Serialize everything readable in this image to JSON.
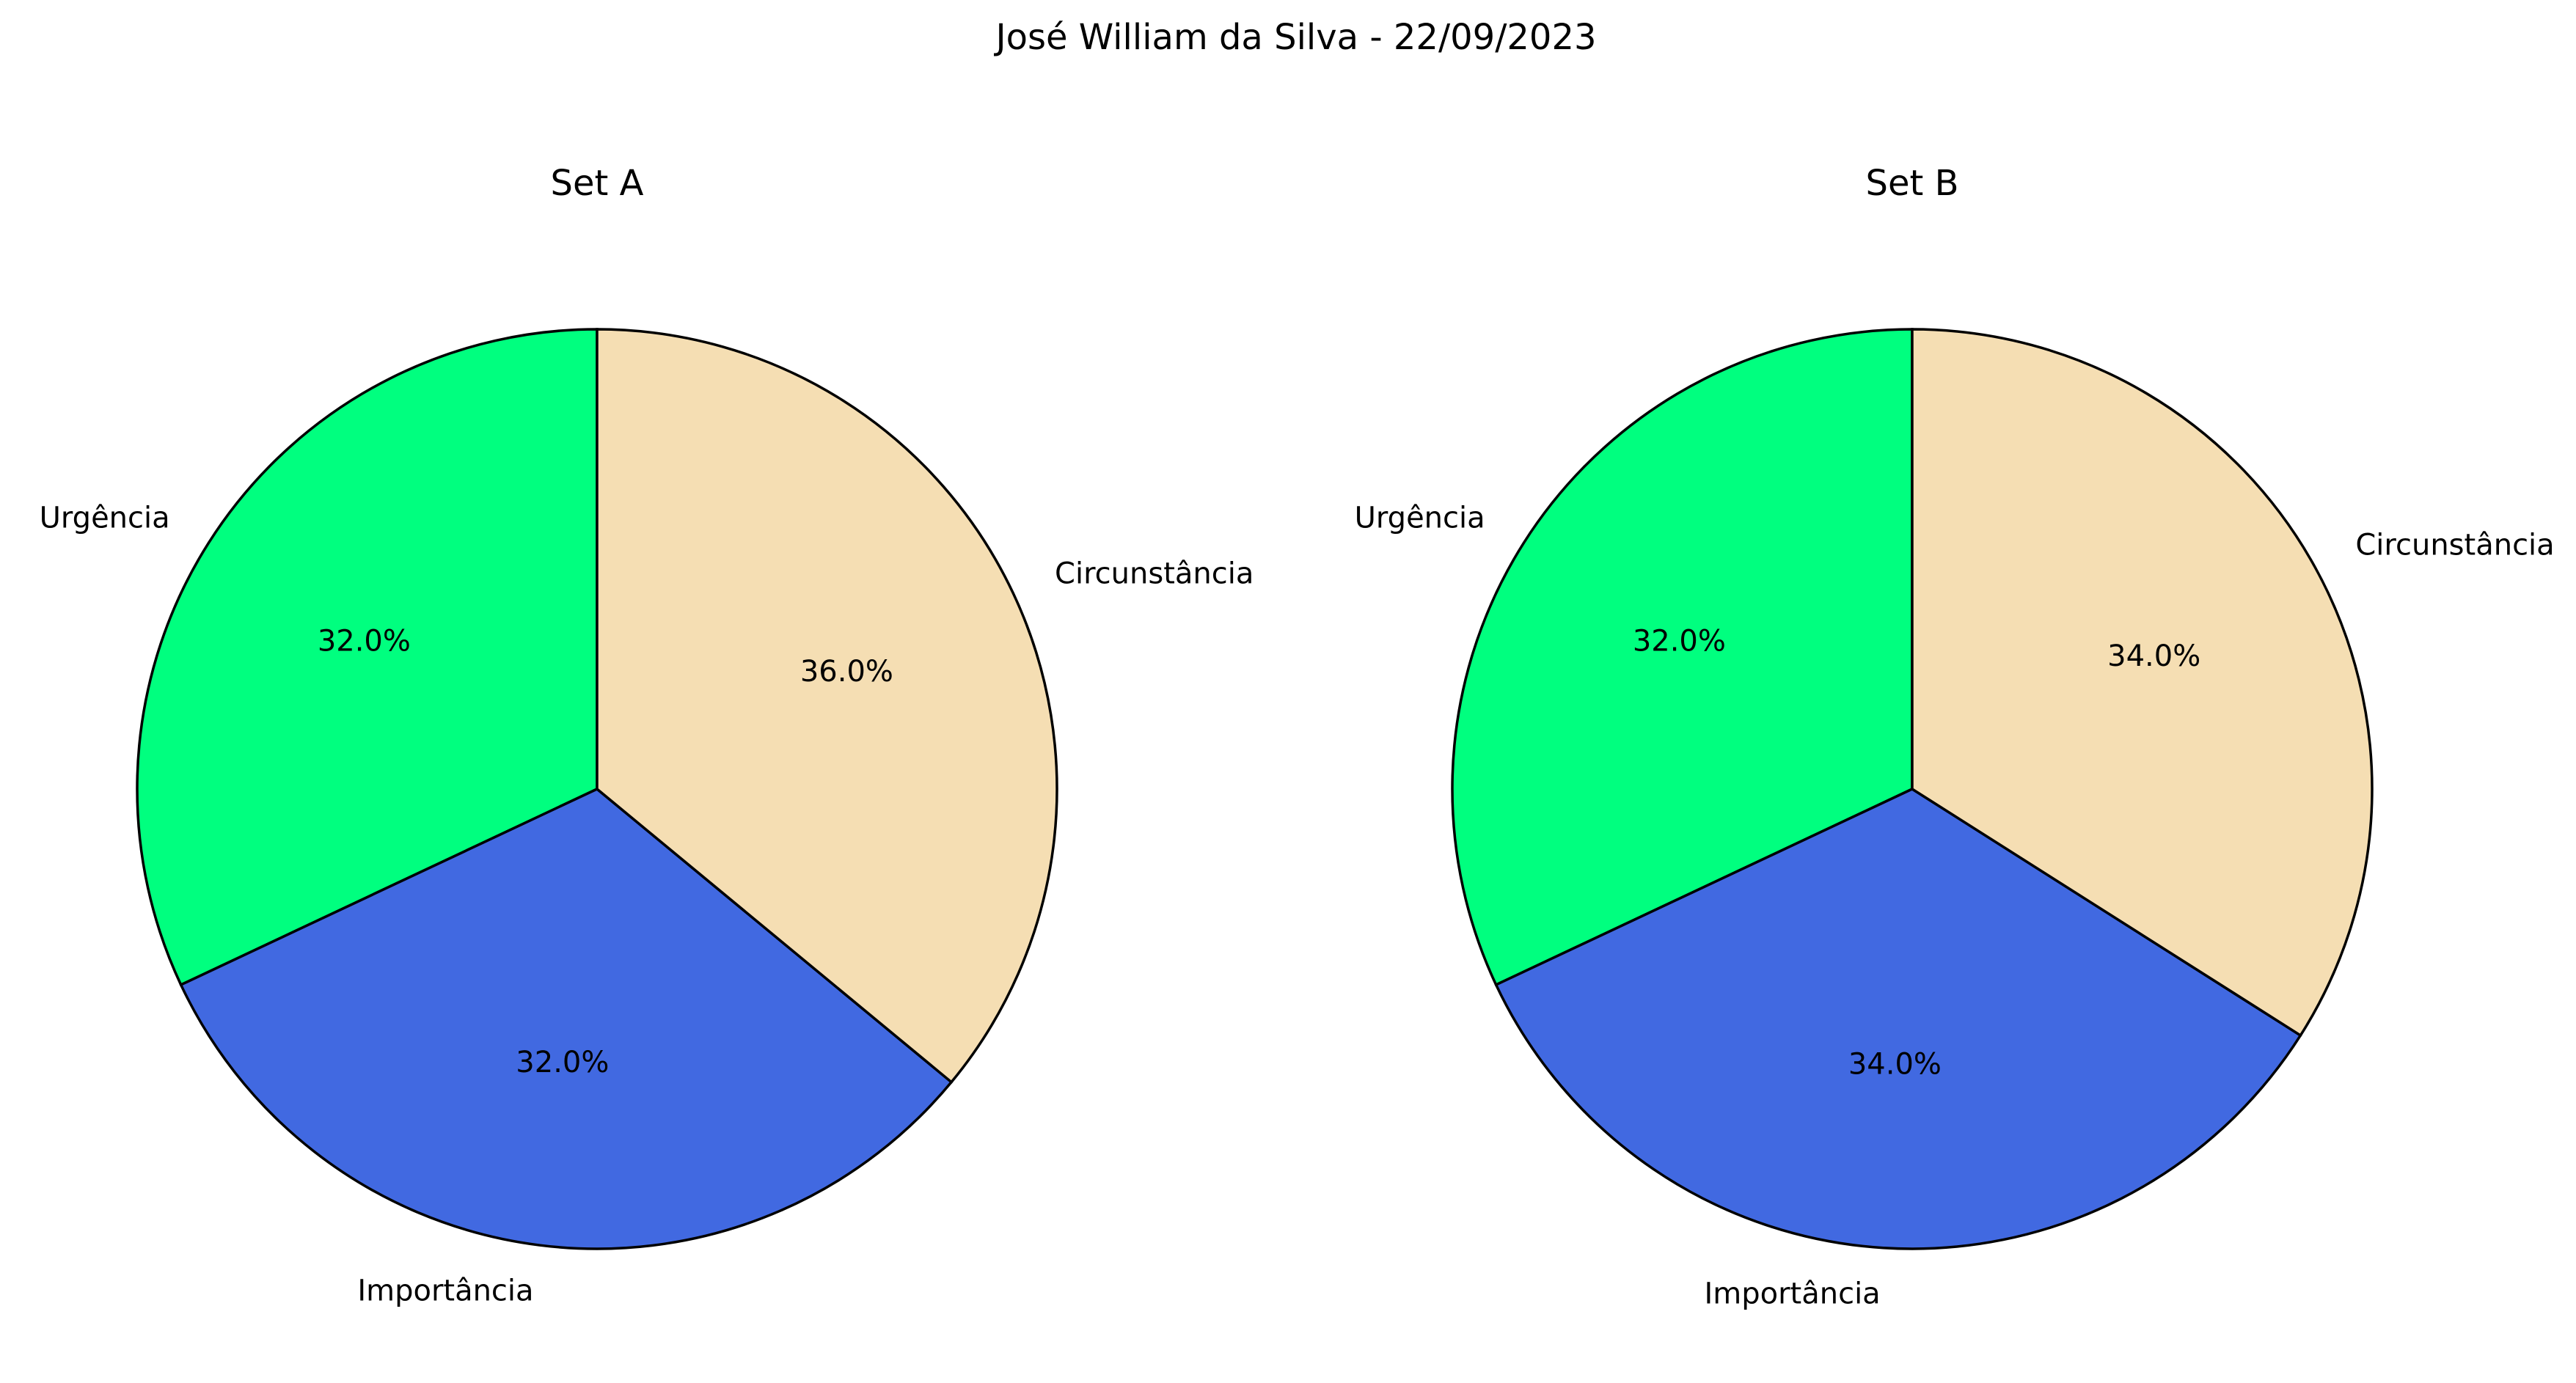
{
  "figure": {
    "title": "José William da Silva - 22/09/2023"
  },
  "chart_data": [
    {
      "type": "pie",
      "title": "Set A",
      "labels": [
        "Urgência",
        "Importância",
        "Circunstância"
      ],
      "values": [
        32.0,
        32.0,
        36.0
      ],
      "value_labels": [
        "32.0%",
        "32.0%",
        "36.0%"
      ],
      "colors": [
        "#00FF7F",
        "#4169E1",
        "#F5DEB3"
      ],
      "start_angle_deg": 90,
      "direction": "counterclockwise",
      "edge_color": "#000000"
    },
    {
      "type": "pie",
      "title": "Set B",
      "labels": [
        "Urgência",
        "Importância",
        "Circunstância"
      ],
      "values": [
        32.0,
        34.0,
        34.0
      ],
      "value_labels": [
        "32.0%",
        "34.0%",
        "34.0%"
      ],
      "colors": [
        "#00FF7F",
        "#4169E1",
        "#F5DEB3"
      ],
      "start_angle_deg": 90,
      "direction": "counterclockwise",
      "edge_color": "#000000"
    }
  ]
}
